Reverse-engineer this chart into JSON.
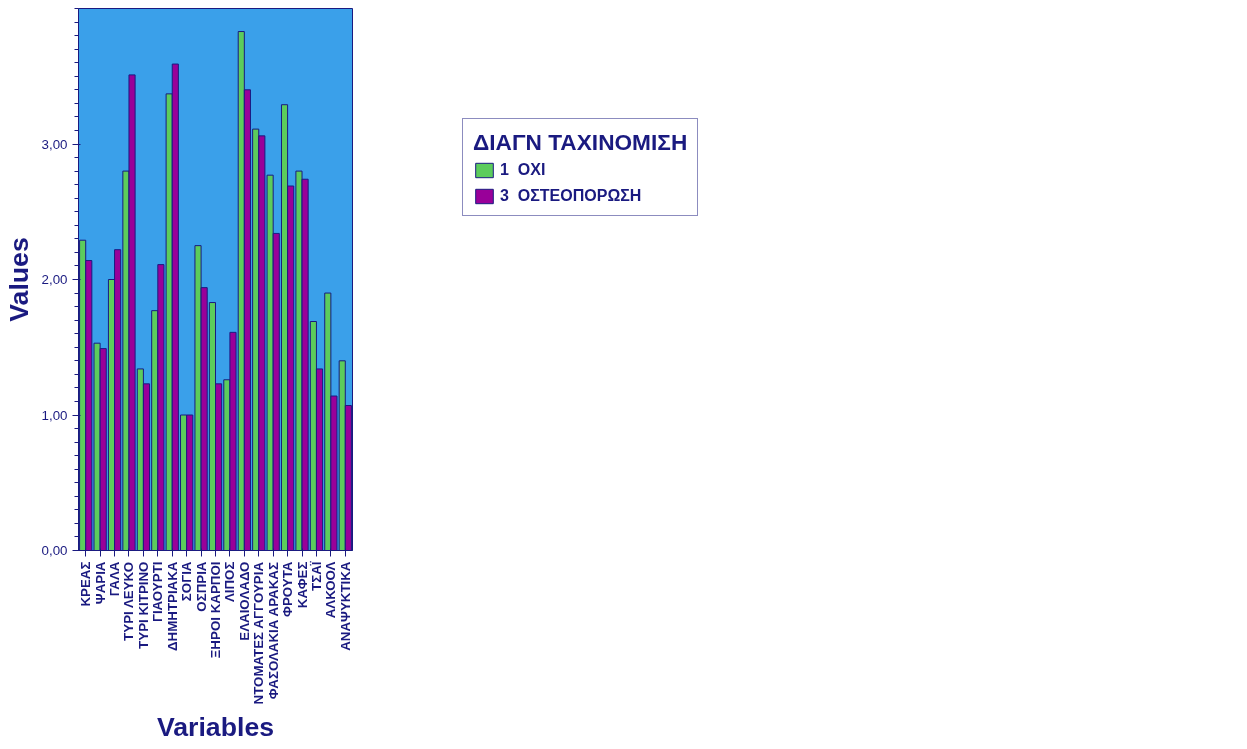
{
  "chart_data": {
    "type": "bar",
    "xlabel": "Variables",
    "ylabel": "Values",
    "legend_title": "ΔΙΑΓΝ ΤΑΧΙΝΟΜΙΣΗ",
    "categories": [
      "ΚΡΕΑΣ",
      "ΨΑΡΙΑ",
      "ΓΑΛΑ",
      "ΤΥΡΙ ΛΕΥΚΟ",
      "ΤΥΡΙ ΚΙΤΡΙΝΟ",
      "ΓΙΑΟΥΡΤΙ",
      "ΔΗΜΗΤΡΙΑΚΑ",
      "ΣΟΓΙΑ",
      "ΟΣΠΡΙΑ",
      "ΞΗΡΟΙ ΚΑΡΠΟΙ",
      "ΛΙΠΟΣ",
      "ΕΛΑΙΟΛΑΔΟ",
      "ΝΤΟΜΑΤΕΣ ΑΓΓΟΥΡΙΑ",
      "ΦΑΣΟΛΑΚΙΑ ΑΡΑΚΑΣ",
      "ΦΡΟΥΤΑ",
      "ΚΑΦΕΣ",
      "ΤΣΑΪ",
      "ΑΛΚΟΟΛ",
      "ΑΝΑΨΥΚΤΙΚΑ"
    ],
    "series": [
      {
        "name": "1  ΟΧΙ",
        "color": "#5ccc5c",
        "values": [
          2.29,
          1.53,
          2.0,
          2.8,
          1.34,
          1.77,
          3.37,
          1.0,
          2.25,
          1.83,
          1.26,
          3.83,
          3.11,
          2.77,
          3.29,
          2.8,
          1.69,
          1.9,
          1.4
        ]
      },
      {
        "name": "3  ΟΣΤΕΟΠΟΡΩΣΗ",
        "color": "#990099",
        "values": [
          2.14,
          1.49,
          2.22,
          3.51,
          1.23,
          2.11,
          3.59,
          1.0,
          1.94,
          1.23,
          1.61,
          3.4,
          3.06,
          2.34,
          2.69,
          2.74,
          1.34,
          1.14,
          1.07
        ]
      }
    ],
    "ylim": [
      0,
      4
    ],
    "yticks": [
      {
        "value": 0,
        "label": "0,00"
      },
      {
        "value": 1,
        "label": "1,00"
      },
      {
        "value": 2,
        "label": "2,00"
      },
      {
        "value": 3,
        "label": "3,00"
      }
    ],
    "grid": false,
    "legend": "top right"
  }
}
